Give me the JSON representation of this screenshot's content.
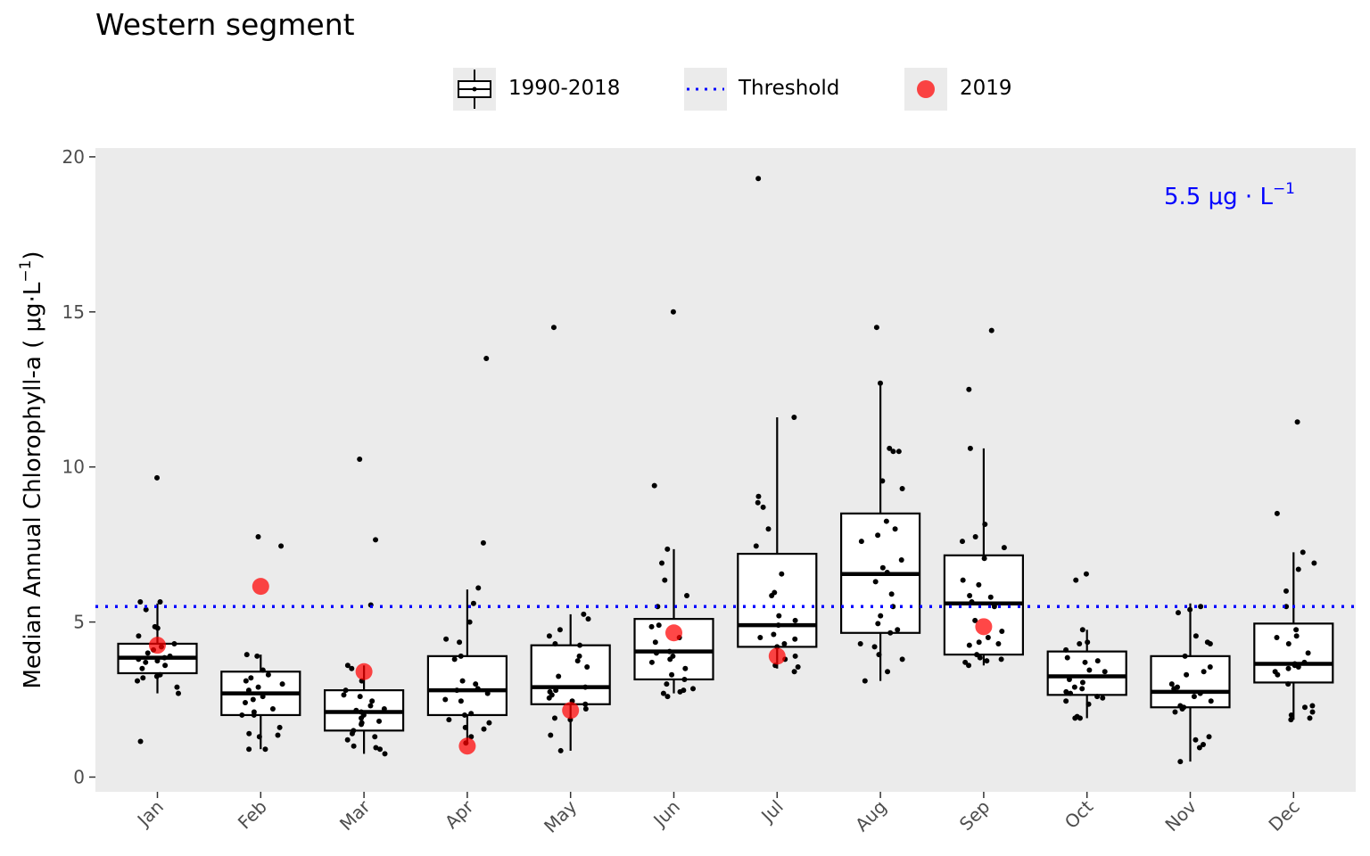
{
  "chart_data": {
    "type": "box",
    "title": "Western segment",
    "ylabel": "Median Annual Chlorophyll-a ( μg·L",
    "ylabel_sup": "−1",
    "ylabel_close": ")",
    "xlabel": "",
    "ylim": [
      0,
      20
    ],
    "yticks": [
      0,
      5,
      10,
      15,
      20
    ],
    "grid": false,
    "panel_background": "#ebebeb",
    "legend_position": "top",
    "legend": [
      {
        "key": "box",
        "label": "1990-2018"
      },
      {
        "key": "dotted-line",
        "label": "Threshold"
      },
      {
        "key": "red-point",
        "label": "2019"
      }
    ],
    "threshold": {
      "value": 5.5,
      "color": "#0000ff",
      "label": "5.5 μg · L",
      "label_sup": "−1"
    },
    "categories": [
      "Jan",
      "Feb",
      "Mar",
      "Apr",
      "May",
      "Jun",
      "Jul",
      "Aug",
      "Sep",
      "Oct",
      "Nov",
      "Dec"
    ],
    "boxes": [
      {
        "month": "Jan",
        "low": 2.7,
        "q1": 3.35,
        "median": 3.85,
        "q3": 4.3,
        "high": 5.6
      },
      {
        "month": "Feb",
        "low": 0.9,
        "q1": 2.0,
        "median": 2.7,
        "q3": 3.4,
        "high": 3.95
      },
      {
        "month": "Mar",
        "low": 0.75,
        "q1": 1.5,
        "median": 2.1,
        "q3": 2.8,
        "high": 3.6
      },
      {
        "month": "Apr",
        "low": 1.1,
        "q1": 2.0,
        "median": 2.8,
        "q3": 3.9,
        "high": 6.05
      },
      {
        "month": "May",
        "low": 0.85,
        "q1": 2.35,
        "median": 2.9,
        "q3": 4.25,
        "high": 5.25
      },
      {
        "month": "Jun",
        "low": 2.7,
        "q1": 3.15,
        "median": 4.05,
        "q3": 5.1,
        "high": 7.35
      },
      {
        "month": "Jul",
        "low": 3.5,
        "q1": 4.2,
        "median": 4.9,
        "q3": 7.2,
        "high": 11.6
      },
      {
        "month": "Aug",
        "low": 3.1,
        "q1": 4.65,
        "median": 6.55,
        "q3": 8.5,
        "high": 12.7
      },
      {
        "month": "Sep",
        "low": 3.6,
        "q1": 3.95,
        "median": 5.6,
        "q3": 7.15,
        "high": 10.6
      },
      {
        "month": "Oct",
        "low": 1.9,
        "q1": 2.65,
        "median": 3.25,
        "q3": 4.05,
        "high": 4.75
      },
      {
        "month": "Nov",
        "low": 0.5,
        "q1": 2.25,
        "median": 2.75,
        "q3": 3.9,
        "high": 5.6
      },
      {
        "month": "Dec",
        "low": 1.85,
        "q1": 3.05,
        "median": 3.65,
        "q3": 4.95,
        "high": 7.25
      }
    ],
    "points_1990_2018": [
      {
        "month": "Jan",
        "values": [
          9.65,
          5.65,
          5.65,
          5.4,
          4.85,
          4.8,
          4.55,
          4.3,
          4.2,
          4.1,
          4.0,
          3.9,
          3.85,
          3.8,
          3.75,
          3.7,
          3.6,
          3.5,
          3.3,
          3.25,
          3.2,
          3.1,
          2.9,
          2.7,
          1.15
        ]
      },
      {
        "month": "Feb",
        "values": [
          7.75,
          7.45,
          3.95,
          3.9,
          3.45,
          3.3,
          3.2,
          3.1,
          3.0,
          2.9,
          2.8,
          2.6,
          2.5,
          2.4,
          2.2,
          2.1,
          2.0,
          2.0,
          1.6,
          1.4,
          1.35,
          1.3,
          0.9,
          0.9
        ]
      },
      {
        "month": "Mar",
        "values": [
          10.25,
          7.65,
          5.55,
          3.6,
          3.5,
          3.1,
          2.8,
          2.65,
          2.6,
          2.45,
          2.3,
          2.2,
          2.15,
          2.1,
          2.0,
          1.9,
          1.8,
          1.75,
          1.7,
          1.5,
          1.4,
          1.3,
          1.2,
          1.0,
          0.95,
          0.9,
          0.75
        ]
      },
      {
        "month": "Apr",
        "values": [
          13.5,
          7.55,
          6.1,
          5.6,
          5.0,
          4.45,
          4.35,
          3.9,
          3.8,
          3.1,
          3.0,
          2.85,
          2.8,
          2.7,
          2.5,
          2.45,
          2.05,
          2.0,
          1.85,
          1.75,
          1.6,
          1.55,
          1.3,
          1.1
        ]
      },
      {
        "month": "May",
        "values": [
          14.5,
          5.25,
          5.1,
          4.75,
          4.55,
          4.3,
          4.25,
          3.9,
          3.75,
          3.55,
          3.25,
          2.9,
          2.8,
          2.75,
          2.65,
          2.55,
          2.45,
          2.35,
          2.2,
          1.9,
          1.85,
          1.35,
          0.85
        ]
      },
      {
        "month": "Jun",
        "values": [
          15.0,
          9.4,
          7.35,
          6.9,
          6.35,
          5.85,
          5.5,
          4.9,
          4.85,
          4.5,
          4.35,
          4.05,
          4.0,
          3.9,
          3.8,
          3.7,
          3.5,
          3.3,
          3.15,
          3.0,
          2.85,
          2.8,
          2.75,
          2.7,
          2.6
        ]
      },
      {
        "month": "Jul",
        "values": [
          19.3,
          11.6,
          9.05,
          8.85,
          8.7,
          8.0,
          7.45,
          6.55,
          5.95,
          5.85,
          5.2,
          5.05,
          4.9,
          4.6,
          4.5,
          4.45,
          4.3,
          4.2,
          3.9,
          3.8,
          3.6,
          3.55,
          3.4
        ]
      },
      {
        "month": "Aug",
        "values": [
          14.5,
          12.7,
          10.6,
          10.5,
          10.5,
          9.55,
          9.3,
          8.25,
          8.0,
          7.8,
          7.6,
          7.0,
          6.75,
          6.6,
          6.3,
          5.9,
          5.5,
          5.2,
          4.95,
          4.75,
          4.65,
          4.3,
          4.2,
          3.95,
          3.8,
          3.4,
          3.1
        ]
      },
      {
        "month": "Sep",
        "values": [
          14.4,
          12.5,
          10.6,
          8.15,
          7.75,
          7.6,
          7.4,
          7.05,
          6.35,
          6.2,
          5.85,
          5.8,
          5.65,
          5.5,
          5.05,
          4.7,
          4.5,
          4.35,
          4.3,
          4.25,
          3.95,
          3.85,
          3.8,
          3.75,
          3.7,
          3.6
        ]
      },
      {
        "month": "Oct",
        "values": [
          6.55,
          6.35,
          4.75,
          4.35,
          4.3,
          4.1,
          3.85,
          3.75,
          3.7,
          3.45,
          3.4,
          3.15,
          3.05,
          2.9,
          2.85,
          2.75,
          2.7,
          2.6,
          2.55,
          2.45,
          2.35,
          1.95,
          1.9,
          1.9
        ]
      },
      {
        "month": "Nov",
        "values": [
          5.5,
          5.4,
          5.3,
          4.55,
          4.35,
          4.3,
          3.9,
          3.55,
          3.4,
          3.3,
          3.0,
          2.9,
          2.85,
          2.7,
          2.6,
          2.45,
          2.3,
          2.25,
          2.2,
          2.1,
          1.3,
          1.2,
          1.05,
          0.95,
          0.5
        ]
      },
      {
        "month": "Dec",
        "values": [
          11.45,
          8.5,
          7.25,
          6.9,
          6.7,
          6.0,
          5.5,
          4.75,
          4.55,
          4.5,
          4.3,
          4.0,
          3.7,
          3.65,
          3.6,
          3.55,
          3.5,
          3.4,
          3.3,
          3.0,
          2.3,
          2.25,
          2.1,
          2.0,
          1.9,
          1.85
        ]
      }
    ],
    "points_2019": [
      {
        "month": "Jan",
        "value": 4.25
      },
      {
        "month": "Feb",
        "value": 6.15
      },
      {
        "month": "Mar",
        "value": 3.4
      },
      {
        "month": "Apr",
        "value": 1.0
      },
      {
        "month": "May",
        "value": 2.15
      },
      {
        "month": "Jun",
        "value": 4.65
      },
      {
        "month": "Jul",
        "value": 3.9
      },
      {
        "month": "Aug",
        "value": null
      },
      {
        "month": "Sep",
        "value": 4.85
      },
      {
        "month": "Oct",
        "value": null
      },
      {
        "month": "Nov",
        "value": null
      },
      {
        "month": "Dec",
        "value": null
      }
    ],
    "colors": {
      "box": "#000000",
      "points": "#000000",
      "point_2019": "#ff0000",
      "threshold": "#0000ff"
    }
  }
}
